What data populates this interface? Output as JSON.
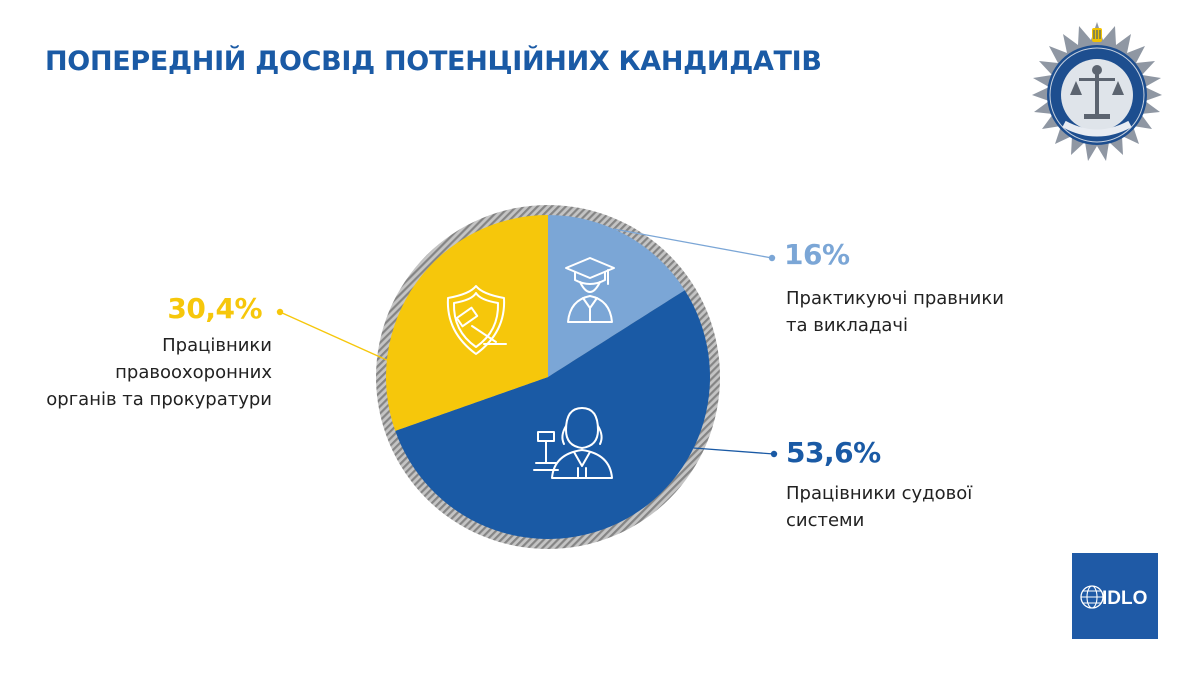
{
  "title": "ПОПЕРЕДНІЙ ДОСВІД ПОТЕНЦІЙНИХ КАНДИДАТІВ",
  "colors": {
    "title": "#1a5aa5",
    "lawyers": "#7ba6d6",
    "judiciary": "#1a5aa5",
    "law_enforcement": "#f6c70b",
    "ring": "#9a9a9a"
  },
  "icons": {
    "lawyers": "graduate-icon",
    "judiciary": "judge-icon",
    "law_enforcement": "badge-gavel-icon"
  },
  "logos": {
    "commission_emblem": "commission-emblem",
    "idlo": "IDLO"
  },
  "chart_data": {
    "type": "pie",
    "start_angle_deg": 0,
    "direction": "clockwise",
    "slices": [
      {
        "key": "lawyers",
        "value": 16,
        "value_label": "16%",
        "label": "Практикуючі правники та викладачі"
      },
      {
        "key": "judiciary",
        "value": 53.6,
        "value_label": "53,6%",
        "label": "Працівники судової системи"
      },
      {
        "key": "law_enforcement",
        "value": 30.4,
        "value_label": "30,4%",
        "label": "Працівники правоохоронних органів та прокуратури"
      }
    ]
  },
  "labels": {
    "lawyers": {
      "pct": "16%",
      "line1": "Практикуючі правники",
      "line2": "та викладачі"
    },
    "judiciary": {
      "pct": "53,6%",
      "line1": "Працівники судової",
      "line2": "системи"
    },
    "law_enforcement": {
      "pct": "30,4%",
      "line1": "Працівники",
      "line2": "правоохоронних",
      "line3": "органів та прокуратури"
    }
  }
}
